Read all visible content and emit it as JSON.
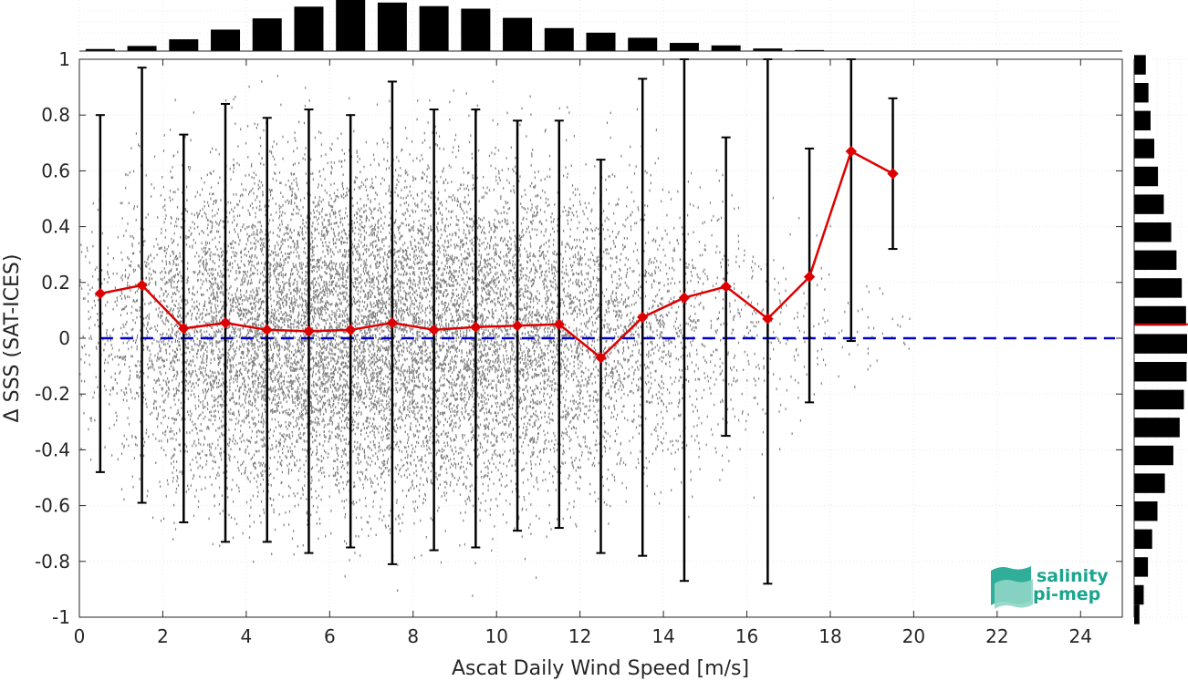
{
  "chart_data": {
    "type": "scatter",
    "xlabel": "Ascat Daily Wind Speed [m/s]",
    "ylabel": "Δ SSS (SAT-ICES)",
    "xlim": [
      0,
      25
    ],
    "ylim": [
      -1,
      1
    ],
    "xticks": [
      0,
      2,
      4,
      6,
      8,
      10,
      12,
      14,
      16,
      18,
      20,
      22,
      24
    ],
    "yticks": [
      1,
      0.8,
      0.6,
      0.4,
      0.2,
      0,
      -0.2,
      -0.4,
      -0.6,
      -0.8,
      -1
    ],
    "grid": true,
    "reference_line": {
      "y": 0,
      "color": "#0000cc",
      "style": "dashed"
    },
    "binned_stats": {
      "color": "#dd0000",
      "x": [
        0.5,
        1.5,
        2.5,
        3.5,
        4.5,
        5.5,
        6.5,
        7.5,
        8.5,
        9.5,
        10.5,
        11.5,
        12.5,
        13.5,
        14.5,
        15.5,
        16.5,
        17.5,
        18.5,
        19.5
      ],
      "mean": [
        0.16,
        0.19,
        0.035,
        0.055,
        0.03,
        0.025,
        0.03,
        0.055,
        0.03,
        0.04,
        0.045,
        0.05,
        -0.07,
        0.075,
        0.145,
        0.185,
        0.07,
        0.22,
        0.67,
        0.59
      ],
      "upper": [
        0.8,
        0.97,
        0.73,
        0.84,
        0.79,
        0.82,
        0.8,
        0.92,
        0.82,
        0.82,
        0.78,
        0.78,
        0.64,
        0.93,
        1.0,
        0.72,
        1.0,
        0.68,
        1.0,
        0.86
      ],
      "lower": [
        -0.48,
        -0.59,
        -0.66,
        -0.73,
        -0.73,
        -0.77,
        -0.75,
        -0.81,
        -0.76,
        -0.75,
        -0.69,
        -0.68,
        -0.77,
        -0.78,
        -0.87,
        -0.35,
        -0.88,
        -0.23,
        -0.01,
        0.32
      ]
    },
    "scatter_color": "#808080",
    "scatter_density": [
      0.12,
      0.3,
      0.55,
      0.75,
      0.9,
      1.0,
      1.0,
      0.95,
      0.9,
      0.85,
      0.75,
      0.6,
      0.45,
      0.32,
      0.2,
      0.12,
      0.07,
      0.04,
      0.015,
      0.01
    ],
    "scatter_spread": [
      0.6,
      0.8,
      0.85,
      0.88,
      0.9,
      0.92,
      0.92,
      0.92,
      0.9,
      0.9,
      0.88,
      0.85,
      0.82,
      0.8,
      0.75,
      0.7,
      0.65,
      0.5,
      0.3,
      0.25
    ],
    "histogram_x": {
      "bin_centers": [
        0.5,
        1.5,
        2.5,
        3.5,
        4.5,
        5.5,
        6.5,
        7.5,
        8.5,
        9.5,
        10.5,
        11.5,
        12.5,
        13.5,
        14.5,
        15.5,
        16.5,
        17.5
      ],
      "counts": [
        0.04,
        0.1,
        0.23,
        0.42,
        0.64,
        0.87,
        1.0,
        0.95,
        0.88,
        0.83,
        0.65,
        0.45,
        0.36,
        0.26,
        0.16,
        0.11,
        0.05,
        0.02
      ],
      "color": "#000000"
    },
    "histogram_y": {
      "bin_centers": [
        0.98,
        0.88,
        0.78,
        0.68,
        0.58,
        0.48,
        0.38,
        0.28,
        0.18,
        0.08,
        -0.02,
        -0.12,
        -0.22,
        -0.32,
        -0.42,
        -0.52,
        -0.62,
        -0.72,
        -0.82,
        -0.92,
        -0.99
      ],
      "counts": [
        0.22,
        0.27,
        0.31,
        0.38,
        0.45,
        0.56,
        0.7,
        0.8,
        0.9,
        0.98,
        1.0,
        0.99,
        0.94,
        0.86,
        0.74,
        0.58,
        0.44,
        0.34,
        0.26,
        0.18,
        0.1
      ],
      "mean_line": {
        "y": 0.05,
        "color": "#dd0000"
      },
      "color": "#000000"
    }
  },
  "logo": {
    "line1": "salinity",
    "line2": "pi-mep",
    "color": "#1aa58f"
  }
}
